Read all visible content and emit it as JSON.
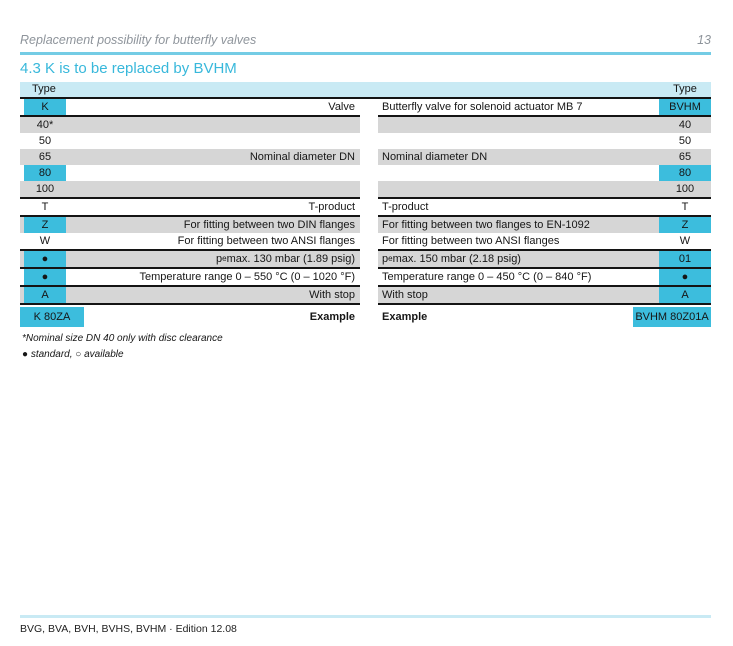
{
  "page": {
    "header": {
      "title": "Replacement possibility for butterfly valves",
      "page_number": "13"
    },
    "section_title": "4.3 K is to be replaced by BVHM",
    "table": {
      "header_left": "Type",
      "header_right": "Type",
      "rows": [
        {
          "lc": "K",
          "ld": "Valve",
          "rd": "Butterfly valve for solenoid actuator MB 7",
          "rc": "BVHM",
          "lcyan": true,
          "rcyan": true,
          "gray": false,
          "ge": true
        },
        {
          "lc": "40*",
          "ld": "",
          "rd": "",
          "rc": "40",
          "gray": true
        },
        {
          "lc": "50",
          "ld": "",
          "rd": "",
          "rc": "50"
        },
        {
          "lc": "65",
          "ld": "Nominal diameter DN",
          "rd": "Nominal diameter DN",
          "rc": "65",
          "gray": true
        },
        {
          "lc": "80",
          "ld": "",
          "rd": "",
          "rc": "80",
          "lcyan": true,
          "rcyan": true
        },
        {
          "lc": "100",
          "ld": "",
          "rd": "",
          "rc": "100",
          "gray": true,
          "ge": true
        },
        {
          "lc": "T",
          "ld": "T-product",
          "rd": "T-product",
          "rc": "T",
          "ge": true
        },
        {
          "lc": "Z",
          "ld": "For fitting between two DIN flanges",
          "rd": "For fitting between two flanges to EN-1092",
          "rc": "Z",
          "lcyan": true,
          "rcyan": true,
          "gray": true
        },
        {
          "lc": "W",
          "ld": "For fitting between two ANSI flanges",
          "rd": "For fitting between two ANSI flanges",
          "rc": "W",
          "ge": true
        },
        {
          "lc": "●",
          "ld": {
            "seg": [
              [
                "p",
                0
              ],
              [
                "e",
                1
              ],
              [
                " max. 130 mbar (1.89 psig)",
                0
              ]
            ]
          },
          "rd": {
            "seg": [
              [
                "p",
                0
              ],
              [
                "e",
                1
              ],
              [
                " max. 150 mbar (2.18 psig)",
                0
              ]
            ]
          },
          "rc": "01",
          "lcyan": true,
          "rcyan": true,
          "gray": true,
          "ge": true
        },
        {
          "lc": "●",
          "ld": "Temperature range 0 – 550 °C (0 – 1020 °F)",
          "rd": "Temperature range 0 – 450 °C (0 – 840 °F)",
          "rc": "●",
          "lcyan": true,
          "rcyan": true,
          "ge": true
        },
        {
          "lc": "A",
          "ld": "With stop",
          "rd": "With stop",
          "rc": "A",
          "lcyan": true,
          "rcyan": true,
          "gray": true,
          "ge": true
        },
        {
          "lc": "K 80ZA",
          "ld": "Example",
          "rd": "Example",
          "rc": "BVHM 80Z01A",
          "lcyan": true,
          "rcyan": true,
          "wide": true,
          "bold": true,
          "ex": true
        }
      ]
    },
    "footnotes": [
      "*Nominal size DN 40 only with disc clearance",
      "● standard, ○ available"
    ],
    "footer": "BVG, BVA, BVH, BVHS, BVHM · Edition 12.08",
    "colors": {
      "cell_cyan": "#3cbddd",
      "band_cyan": "#c9eaf4",
      "rule_cyan": "#74cce5",
      "title_cyan": "#38b8db",
      "row_gray": "#d6d6d6",
      "line_black": "#141414",
      "header_text": "#8e949b"
    }
  }
}
